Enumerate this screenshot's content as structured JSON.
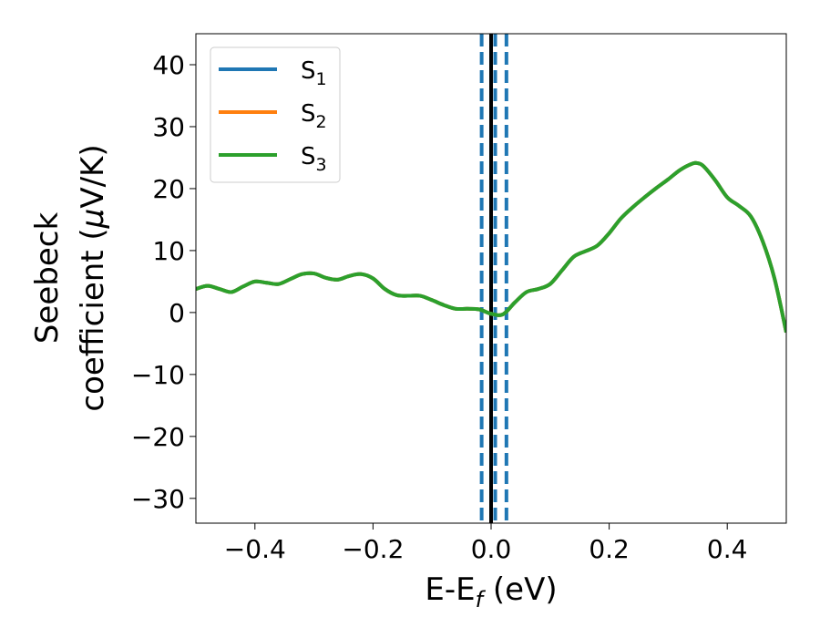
{
  "chart_data": {
    "type": "line",
    "title": "",
    "xlabel": "E-E",
    "xlabel_sub": "f",
    "xlabel_unit": " (eV)",
    "ylabel_line1": "Seebeck",
    "ylabel_line2": "coefficient  (",
    "ylabel_mu": "μ",
    "ylabel_unit": "V/K)",
    "xlim": [
      -0.5,
      0.5
    ],
    "ylim": [
      -34,
      45
    ],
    "xticks": [
      -0.4,
      -0.2,
      0.0,
      0.2,
      0.4
    ],
    "xtick_labels": [
      "−0.4",
      "−0.2",
      "0.0",
      "0.2",
      "0.4"
    ],
    "yticks": [
      -30,
      -20,
      -10,
      0,
      10,
      20,
      30,
      40
    ],
    "ytick_labels": [
      "−30",
      "−20",
      "−10",
      "0",
      "10",
      "20",
      "30",
      "40"
    ],
    "grid": false,
    "legend_position": "top-left",
    "vertical_lines": [
      {
        "x": -0.016,
        "style": "dashed",
        "color": "#1f77b4"
      },
      {
        "x": 0.0,
        "style": "solid",
        "color": "#000000"
      },
      {
        "x": 0.007,
        "style": "dashed",
        "color": "#1f77b4"
      },
      {
        "x": 0.026,
        "style": "dashed",
        "color": "#1f77b4"
      }
    ],
    "x": [
      -0.5,
      -0.48,
      -0.46,
      -0.44,
      -0.42,
      -0.4,
      -0.38,
      -0.36,
      -0.34,
      -0.32,
      -0.3,
      -0.28,
      -0.26,
      -0.24,
      -0.22,
      -0.2,
      -0.18,
      -0.16,
      -0.14,
      -0.12,
      -0.1,
      -0.08,
      -0.06,
      -0.04,
      -0.02,
      0.0,
      0.02,
      0.04,
      0.06,
      0.08,
      0.1,
      0.12,
      0.14,
      0.16,
      0.18,
      0.2,
      0.22,
      0.24,
      0.26,
      0.28,
      0.3,
      0.32,
      0.34,
      0.35,
      0.36,
      0.38,
      0.4,
      0.42,
      0.44,
      0.46,
      0.48,
      0.5
    ],
    "series": [
      {
        "name": "S",
        "name_sub": "1",
        "color": "#1f77b4",
        "values": [
          3.8,
          4.3,
          3.8,
          3.3,
          4.2,
          5.0,
          4.8,
          4.6,
          5.4,
          6.2,
          6.3,
          5.6,
          5.3,
          5.9,
          6.2,
          5.5,
          3.8,
          2.8,
          2.7,
          2.7,
          2.0,
          1.2,
          0.6,
          0.6,
          0.5,
          -0.2,
          -0.3,
          1.6,
          3.3,
          3.8,
          4.6,
          6.8,
          9.0,
          9.9,
          10.8,
          12.8,
          15.2,
          17.0,
          18.6,
          20.1,
          21.5,
          23.0,
          24.0,
          24.1,
          23.6,
          21.3,
          18.6,
          17.2,
          15.5,
          11.5,
          5.5,
          -3.2
        ]
      },
      {
        "name": "S",
        "name_sub": "2",
        "color": "#ff7f0e",
        "values": [
          3.8,
          4.3,
          3.8,
          3.3,
          4.2,
          5.0,
          4.8,
          4.6,
          5.4,
          6.2,
          6.3,
          5.6,
          5.3,
          5.9,
          6.2,
          5.5,
          3.8,
          2.8,
          2.7,
          2.7,
          2.0,
          1.2,
          0.6,
          0.6,
          0.5,
          -0.2,
          -0.3,
          1.6,
          3.3,
          3.8,
          4.6,
          6.8,
          9.0,
          9.9,
          10.8,
          12.8,
          15.2,
          17.0,
          18.6,
          20.1,
          21.5,
          23.0,
          24.0,
          24.1,
          23.6,
          21.3,
          18.6,
          17.2,
          15.5,
          11.5,
          5.5,
          -3.2
        ]
      },
      {
        "name": "S",
        "name_sub": "3",
        "color": "#2ca02c",
        "values": [
          3.8,
          4.3,
          3.8,
          3.3,
          4.2,
          5.0,
          4.8,
          4.6,
          5.4,
          6.2,
          6.3,
          5.6,
          5.3,
          5.9,
          6.2,
          5.5,
          3.8,
          2.8,
          2.7,
          2.7,
          2.0,
          1.2,
          0.6,
          0.6,
          0.5,
          -0.2,
          -0.3,
          1.6,
          3.3,
          3.8,
          4.6,
          6.8,
          9.0,
          9.9,
          10.8,
          12.8,
          15.2,
          17.0,
          18.6,
          20.1,
          21.5,
          23.0,
          24.0,
          24.1,
          23.6,
          21.3,
          18.6,
          17.2,
          15.5,
          11.5,
          5.5,
          -3.2
        ]
      }
    ]
  }
}
